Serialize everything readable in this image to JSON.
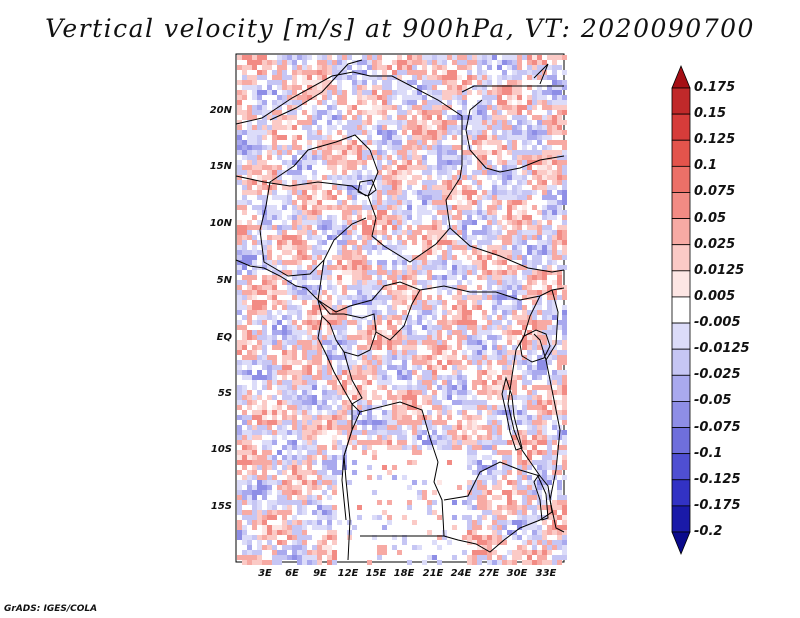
{
  "title": "Vertical velocity [m/s] at 900hPa, VT: 2020090700",
  "credit": "GrADS: IGES/COLA",
  "map": {
    "lat_labels": [
      "20N",
      "15N",
      "10N",
      "5N",
      "EQ",
      "5S",
      "10S",
      "15S"
    ],
    "lon_labels": [
      "3E",
      "6E",
      "9E",
      "12E",
      "15E",
      "18E",
      "21E",
      "24E",
      "27E",
      "30E",
      "33E"
    ]
  },
  "colorbar": {
    "labels": [
      "0.175",
      "0.15",
      "0.125",
      "0.1",
      "0.075",
      "0.05",
      "0.025",
      "0.0125",
      "0.005",
      "-0.005",
      "-0.0125",
      "-0.025",
      "-0.05",
      "-0.075",
      "-0.1",
      "-0.125",
      "-0.175",
      "-0.2"
    ],
    "colors": [
      "#a50f15",
      "#c0292a",
      "#d63c3a",
      "#e3544c",
      "#ec7068",
      "#f28b84",
      "#f7aaa4",
      "#fbcac6",
      "#fde6e4",
      "#ffffff",
      "#dcdcf9",
      "#c6c6f4",
      "#a9a9ee",
      "#8e8ee6",
      "#6f6fdc",
      "#4f4fd2",
      "#3232c4",
      "#1a1aa8",
      "#0a0a8c"
    ]
  }
}
